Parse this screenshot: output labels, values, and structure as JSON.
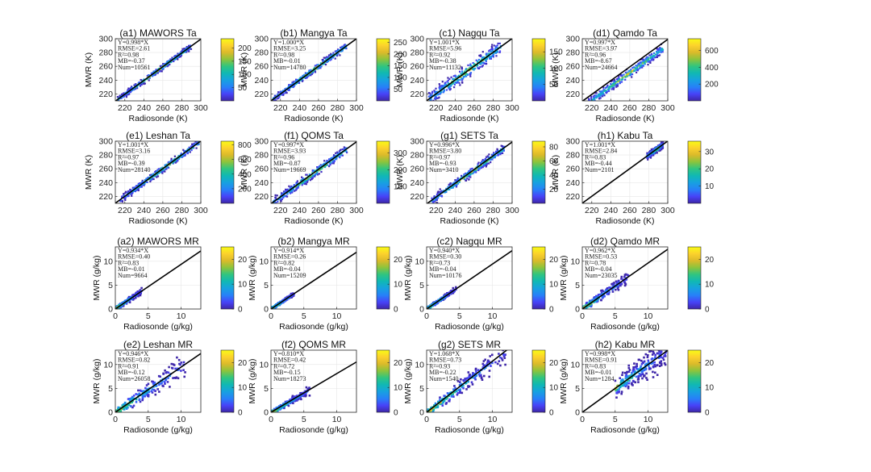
{
  "chart_data": {
    "type": "heatmap",
    "colormap": [
      "#3e26a8",
      "#4743f8",
      "#2781f8",
      "#17a1e0",
      "#10b8b4",
      "#30c580",
      "#8cc43c",
      "#dbba2a",
      "#fcd12d",
      "#f9fb15"
    ],
    "panels": [
      {
        "title": "(a1) MAWORS Ta",
        "variable": "Ta",
        "xlabel": "Radiosonde (K)",
        "ylabel": "MWR (K)",
        "xlim": [
          210,
          300
        ],
        "ylim": [
          210,
          300
        ],
        "xticks": [
          220,
          240,
          260,
          280,
          300
        ],
        "yticks": [
          220,
          240,
          260,
          280,
          300
        ],
        "stats": [
          "Y=0.998*X",
          "RMSE=2.61",
          "R²=0.98",
          "MB=-0.37",
          "Num=10561"
        ],
        "slope": 0.998,
        "rmse": 2.61,
        "mb": -0.37,
        "num": 10561,
        "cticks": [
          50,
          100,
          150,
          200
        ],
        "cmax": 235,
        "data_range": [
          212,
          290
        ]
      },
      {
        "title": "(b1) Mangya Ta",
        "variable": "Ta",
        "xlabel": "Radiosonde (K)",
        "ylabel": "MWR (K)",
        "xlim": [
          210,
          300
        ],
        "ylim": [
          210,
          300
        ],
        "xticks": [
          220,
          240,
          260,
          280,
          300
        ],
        "yticks": [
          220,
          240,
          260,
          280,
          300
        ],
        "stats": [
          "Y=1.000*X",
          "RMSE=3.25",
          "R²=0.98",
          "MB=-0.01",
          "Num=14780"
        ],
        "slope": 1.0,
        "rmse": 3.25,
        "mb": -0.01,
        "num": 14780,
        "cticks": [
          50,
          100,
          150,
          200,
          250
        ],
        "cmax": 265,
        "data_range": [
          212,
          290
        ]
      },
      {
        "title": "(c1) Nagqu Ta",
        "variable": "Ta",
        "xlabel": "Radiosonde (K)",
        "ylabel": "MWR (K)",
        "xlim": [
          210,
          300
        ],
        "ylim": [
          210,
          300
        ],
        "xticks": [
          220,
          240,
          260,
          280,
          300
        ],
        "yticks": [
          220,
          240,
          260,
          280,
          300
        ],
        "stats": [
          "Y=1.001*X",
          "RMSE=5.96",
          "R²=0.92",
          "MB=-0.38",
          "Num=11132"
        ],
        "slope": 1.001,
        "rmse": 5.96,
        "mb": -0.38,
        "num": 11132,
        "cticks": [
          50,
          100,
          150
        ],
        "cmax": 190,
        "data_range": [
          212,
          288
        ]
      },
      {
        "title": "(d1) Qamdo Ta",
        "variable": "Ta",
        "xlabel": "Radiosonde (K)",
        "ylabel": "MWR (K)",
        "xlim": [
          210,
          300
        ],
        "ylim": [
          210,
          300
        ],
        "xticks": [
          220,
          240,
          260,
          280,
          300
        ],
        "yticks": [
          220,
          240,
          260,
          280,
          300
        ],
        "stats": [
          "Y=0.997*X",
          "RMSE=3.97",
          "R²=0.96",
          "MB=-8.67",
          "Num=24664"
        ],
        "slope": 0.997,
        "rmse": 3.97,
        "mb": -8.67,
        "num": 24664,
        "cticks": [
          200,
          400,
          600
        ],
        "cmax": 740,
        "data_range": [
          212,
          295
        ]
      },
      {
        "title": "(e1) Leshan Ta",
        "variable": "Ta",
        "xlabel": "Radiosonde (K)",
        "ylabel": "MWR (K)",
        "xlim": [
          210,
          300
        ],
        "ylim": [
          210,
          300
        ],
        "xticks": [
          220,
          240,
          260,
          280,
          300
        ],
        "yticks": [
          220,
          240,
          260,
          280,
          300
        ],
        "stats": [
          "Y=1.001*X",
          "RMSE=3.16",
          "R²=0.97",
          "MB=-0.39",
          "Num=28140"
        ],
        "slope": 1.001,
        "rmse": 3.16,
        "mb": -0.39,
        "num": 28140,
        "cticks": [
          200,
          400,
          600,
          800
        ],
        "cmax": 850,
        "data_range": [
          215,
          298
        ]
      },
      {
        "title": "(f1) QOMS Ta",
        "variable": "Ta",
        "xlabel": "Radiosonde (K)",
        "ylabel": "MWR (K)",
        "xlim": [
          210,
          300
        ],
        "ylim": [
          210,
          300
        ],
        "xticks": [
          220,
          240,
          260,
          280,
          300
        ],
        "yticks": [
          220,
          240,
          260,
          280,
          300
        ],
        "stats": [
          "Y=0.997*X",
          "RMSE=3.93",
          "R²=0.96",
          "MB=-0.87",
          "Num=19669"
        ],
        "slope": 0.997,
        "rmse": 3.93,
        "mb": -0.87,
        "num": 19669,
        "cticks": [
          100,
          200,
          300
        ],
        "cmax": 370,
        "data_range": [
          212,
          290
        ]
      },
      {
        "title": "(g1) SETS Ta",
        "variable": "Ta",
        "xlabel": "Radiosonde (K)",
        "ylabel": "MWR (K)",
        "xlim": [
          210,
          300
        ],
        "ylim": [
          210,
          300
        ],
        "xticks": [
          220,
          240,
          260,
          280,
          300
        ],
        "yticks": [
          220,
          240,
          260,
          280,
          300
        ],
        "stats": [
          "Y=0.996*X",
          "RMSE=3.80",
          "R²=0.97",
          "MB=-0.93",
          "Num=3410"
        ],
        "slope": 0.996,
        "rmse": 3.8,
        "mb": -0.93,
        "num": 3410,
        "cticks": [
          20,
          40,
          60,
          80
        ],
        "cmax": 88,
        "data_range": [
          215,
          292
        ]
      },
      {
        "title": "(h1) Kabu Ta",
        "variable": "Ta",
        "xlabel": "Radiosonde (K)",
        "ylabel": "MWR (K)",
        "xlim": [
          210,
          300
        ],
        "ylim": [
          210,
          300
        ],
        "xticks": [
          220,
          240,
          260,
          280,
          300
        ],
        "yticks": [
          220,
          240,
          260,
          280,
          300
        ],
        "stats": [
          "Y=1.001*X",
          "RMSE=2.84",
          "R²=0.83",
          "MB=-0.44",
          "Num=2101"
        ],
        "slope": 1.001,
        "rmse": 2.84,
        "mb": -0.44,
        "num": 2101,
        "cticks": [
          10,
          20,
          30
        ],
        "cmax": 36,
        "data_range": [
          278,
          295
        ]
      },
      {
        "title": "(a2) MAWORS MR",
        "variable": "MR",
        "xlabel": "Radiosonde (g/kg)",
        "ylabel": "MWR (g/kg)",
        "xlim": [
          0,
          13
        ],
        "ylim": [
          0,
          13
        ],
        "xticks": [
          0,
          5,
          10
        ],
        "yticks": [
          0,
          5,
          10
        ],
        "stats": [
          "Y=0.934*X",
          "RMSE=0.40",
          "R²=0.83",
          "MB=-0.01",
          "Num=9664"
        ],
        "slope": 0.934,
        "rmse": 0.4,
        "mb": -0.01,
        "num": 9664,
        "cticks": [
          0,
          10,
          20
        ],
        "cmax": 25,
        "data_range": [
          0,
          4
        ]
      },
      {
        "title": "(b2) Mangya MR",
        "variable": "MR",
        "xlabel": "Radiosonde (g/kg)",
        "ylabel": "MWR (g/kg)",
        "xlim": [
          0,
          13
        ],
        "ylim": [
          0,
          13
        ],
        "xticks": [
          0,
          5,
          10
        ],
        "yticks": [
          0,
          5,
          10
        ],
        "stats": [
          "Y=0.914*X",
          "RMSE=0.26",
          "R²=0.82",
          "MB=-0.04",
          "Num=15209"
        ],
        "slope": 0.914,
        "rmse": 0.26,
        "mb": -0.04,
        "num": 15209,
        "cticks": [
          0,
          10,
          20
        ],
        "cmax": 25,
        "data_range": [
          0,
          3.5
        ]
      },
      {
        "title": "(c2) Nagqu MR",
        "variable": "MR",
        "xlabel": "Radiosonde (g/kg)",
        "ylabel": "MWR (g/kg)",
        "xlim": [
          0,
          13
        ],
        "ylim": [
          0,
          13
        ],
        "xticks": [
          0,
          5,
          10
        ],
        "yticks": [
          0,
          5,
          10
        ],
        "stats": [
          "Y=0.940*X",
          "RMSE=0.30",
          "R²=0.73",
          "MB=-0.04",
          "Num=10176"
        ],
        "slope": 0.94,
        "rmse": 0.3,
        "mb": -0.04,
        "num": 10176,
        "cticks": [
          0,
          10,
          20
        ],
        "cmax": 25,
        "data_range": [
          0,
          4.5
        ]
      },
      {
        "title": "(d2) Qamdo MR",
        "variable": "MR",
        "xlabel": "Radiosonde (g/kg)",
        "ylabel": "MWR (g/kg)",
        "xlim": [
          0,
          13
        ],
        "ylim": [
          0,
          13
        ],
        "xticks": [
          0,
          5,
          10
        ],
        "yticks": [
          0,
          5,
          10
        ],
        "stats": [
          "Y=0.962*X",
          "RMSE=0.53",
          "R²=0.78",
          "MB=-0.04",
          "Num=23035"
        ],
        "slope": 0.962,
        "rmse": 0.53,
        "mb": -0.04,
        "num": 23035,
        "cticks": [
          0,
          10,
          20
        ],
        "cmax": 25,
        "data_range": [
          0,
          7
        ]
      },
      {
        "title": "(e2) Leshan MR",
        "variable": "MR",
        "xlabel": "Radiosonde (g/kg)",
        "ylabel": "MWR (g/kg)",
        "xlim": [
          0,
          13
        ],
        "ylim": [
          0,
          13
        ],
        "xticks": [
          0,
          5,
          10
        ],
        "yticks": [
          0,
          5,
          10
        ],
        "stats": [
          "Y=0.946*X",
          "RMSE=0.82",
          "R²=0.91",
          "MB=-0.12",
          "Num=26058"
        ],
        "slope": 0.946,
        "rmse": 0.82,
        "mb": -0.12,
        "num": 26058,
        "cticks": [
          0,
          10,
          20
        ],
        "cmax": 25,
        "data_range": [
          0,
          11
        ]
      },
      {
        "title": "(f2) QOMS MR",
        "variable": "MR",
        "xlabel": "Radiosonde (g/kg)",
        "ylabel": "MWR (g/kg)",
        "xlim": [
          0,
          13
        ],
        "ylim": [
          0,
          13
        ],
        "xticks": [
          0,
          5,
          10
        ],
        "yticks": [
          0,
          5,
          10
        ],
        "stats": [
          "Y=0.810*X",
          "RMSE=0.42",
          "R²=0.72",
          "MB=-0.15",
          "Num=18273"
        ],
        "slope": 0.81,
        "rmse": 0.42,
        "mb": -0.15,
        "num": 18273,
        "cticks": [
          0,
          10,
          20
        ],
        "cmax": 25,
        "data_range": [
          0,
          6
        ]
      },
      {
        "title": "(g2) SETS MR",
        "variable": "MR",
        "xlabel": "Radiosonde (g/kg)",
        "ylabel": "MWR (g/kg)",
        "xlim": [
          0,
          13
        ],
        "ylim": [
          0,
          13
        ],
        "xticks": [
          0,
          5,
          10
        ],
        "yticks": [
          0,
          5,
          10
        ],
        "stats": [
          "Y=1.068*X",
          "RMSE=0.73",
          "R²=0.93",
          "MB=-0.22",
          "Num=1540"
        ],
        "slope": 1.068,
        "rmse": 0.73,
        "mb": -0.22,
        "num": 1540,
        "cticks": [
          0,
          10,
          20
        ],
        "cmax": 25,
        "data_range": [
          0,
          12
        ]
      },
      {
        "title": "(h2) Kabu MR",
        "variable": "MR",
        "xlabel": "Radiosonde (g/kg)",
        "ylabel": "MWR (g/kg)",
        "xlim": [
          0,
          13
        ],
        "ylim": [
          0,
          13
        ],
        "xticks": [
          0,
          5,
          10
        ],
        "yticks": [
          0,
          5,
          10
        ],
        "stats": [
          "Y=0.998*X",
          "RMSE=0.91",
          "R²=0.83",
          "MB=-0.01",
          "Num=1284"
        ],
        "slope": 0.998,
        "rmse": 0.91,
        "mb": -0.01,
        "num": 1284,
        "cticks": [
          0,
          10,
          20
        ],
        "cmax": 25,
        "data_range": [
          5,
          13
        ]
      }
    ]
  }
}
